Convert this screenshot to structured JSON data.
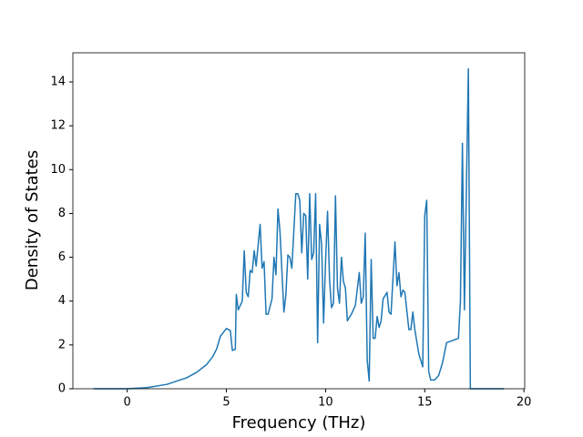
{
  "chart_data": {
    "type": "line",
    "x_label": "Frequency (THz)",
    "y_label": "Density of States",
    "xlim": [
      -2.74,
      20.04
    ],
    "ylim": [
      0,
      15.33
    ],
    "xticks": [
      0,
      5,
      10,
      15,
      20
    ],
    "yticks": [
      0,
      2,
      4,
      6,
      8,
      10,
      12,
      14
    ],
    "series": [
      {
        "color": "#1f77b4",
        "x": [
          -1.7,
          0,
          1,
          2,
          3,
          3.5,
          4,
          4.3,
          4.5,
          4.7,
          5.0,
          5.2,
          5.3,
          5.45,
          5.5,
          5.6,
          5.8,
          5.9,
          6.0,
          6.1,
          6.2,
          6.3,
          6.4,
          6.5,
          6.7,
          6.8,
          6.9,
          7.0,
          7.1,
          7.3,
          7.4,
          7.5,
          7.6,
          7.7,
          7.9,
          8.0,
          8.1,
          8.2,
          8.3,
          8.5,
          8.6,
          8.7,
          8.8,
          8.9,
          9.0,
          9.1,
          9.2,
          9.3,
          9.4,
          9.5,
          9.6,
          9.7,
          9.8,
          9.9,
          10.0,
          10.1,
          10.2,
          10.3,
          10.4,
          10.5,
          10.6,
          10.7,
          10.8,
          10.9,
          11.0,
          11.1,
          11.3,
          11.5,
          11.7,
          11.8,
          11.9,
          12.0,
          12.1,
          12.2,
          12.3,
          12.4,
          12.5,
          12.6,
          12.7,
          12.8,
          12.9,
          13.1,
          13.2,
          13.3,
          13.5,
          13.6,
          13.7,
          13.8,
          13.9,
          14.0,
          14.2,
          14.3,
          14.4,
          14.5,
          14.7,
          14.9,
          15.0,
          15.1,
          15.2,
          15.3,
          15.5,
          15.7,
          15.9,
          16.1,
          16.4,
          16.7,
          16.8,
          16.9,
          17.0,
          17.2,
          17.3,
          18.0,
          19.0
        ],
        "values": [
          0,
          0,
          0.05,
          0.2,
          0.5,
          0.75,
          1.1,
          1.45,
          1.8,
          2.4,
          2.75,
          2.65,
          1.75,
          1.8,
          4.3,
          3.6,
          4.0,
          6.3,
          4.4,
          4.2,
          5.4,
          5.3,
          6.3,
          5.6,
          7.5,
          5.5,
          5.8,
          3.4,
          3.4,
          4.1,
          6.0,
          5.2,
          8.2,
          7.2,
          3.5,
          4.3,
          6.1,
          6.0,
          5.5,
          8.9,
          8.9,
          8.6,
          6.2,
          8.0,
          7.9,
          5.0,
          8.9,
          5.9,
          6.2,
          8.9,
          2.1,
          7.5,
          6.6,
          3.0,
          5.8,
          8.1,
          5.0,
          3.7,
          3.9,
          8.8,
          4.6,
          3.9,
          6.0,
          4.9,
          4.6,
          3.1,
          3.4,
          3.8,
          5.3,
          3.9,
          4.2,
          7.1,
          1.3,
          0.35,
          5.9,
          2.3,
          2.3,
          3.3,
          2.8,
          3.1,
          4.1,
          4.4,
          3.5,
          3.4,
          6.7,
          4.7,
          5.3,
          4.2,
          4.5,
          4.4,
          2.7,
          2.7,
          3.5,
          2.7,
          1.6,
          1.0,
          7.9,
          8.6,
          0.8,
          0.4,
          0.4,
          0.6,
          1.2,
          2.1,
          2.2,
          2.3,
          4.0,
          11.2,
          3.6,
          14.6,
          0,
          0,
          0
        ]
      }
    ]
  }
}
